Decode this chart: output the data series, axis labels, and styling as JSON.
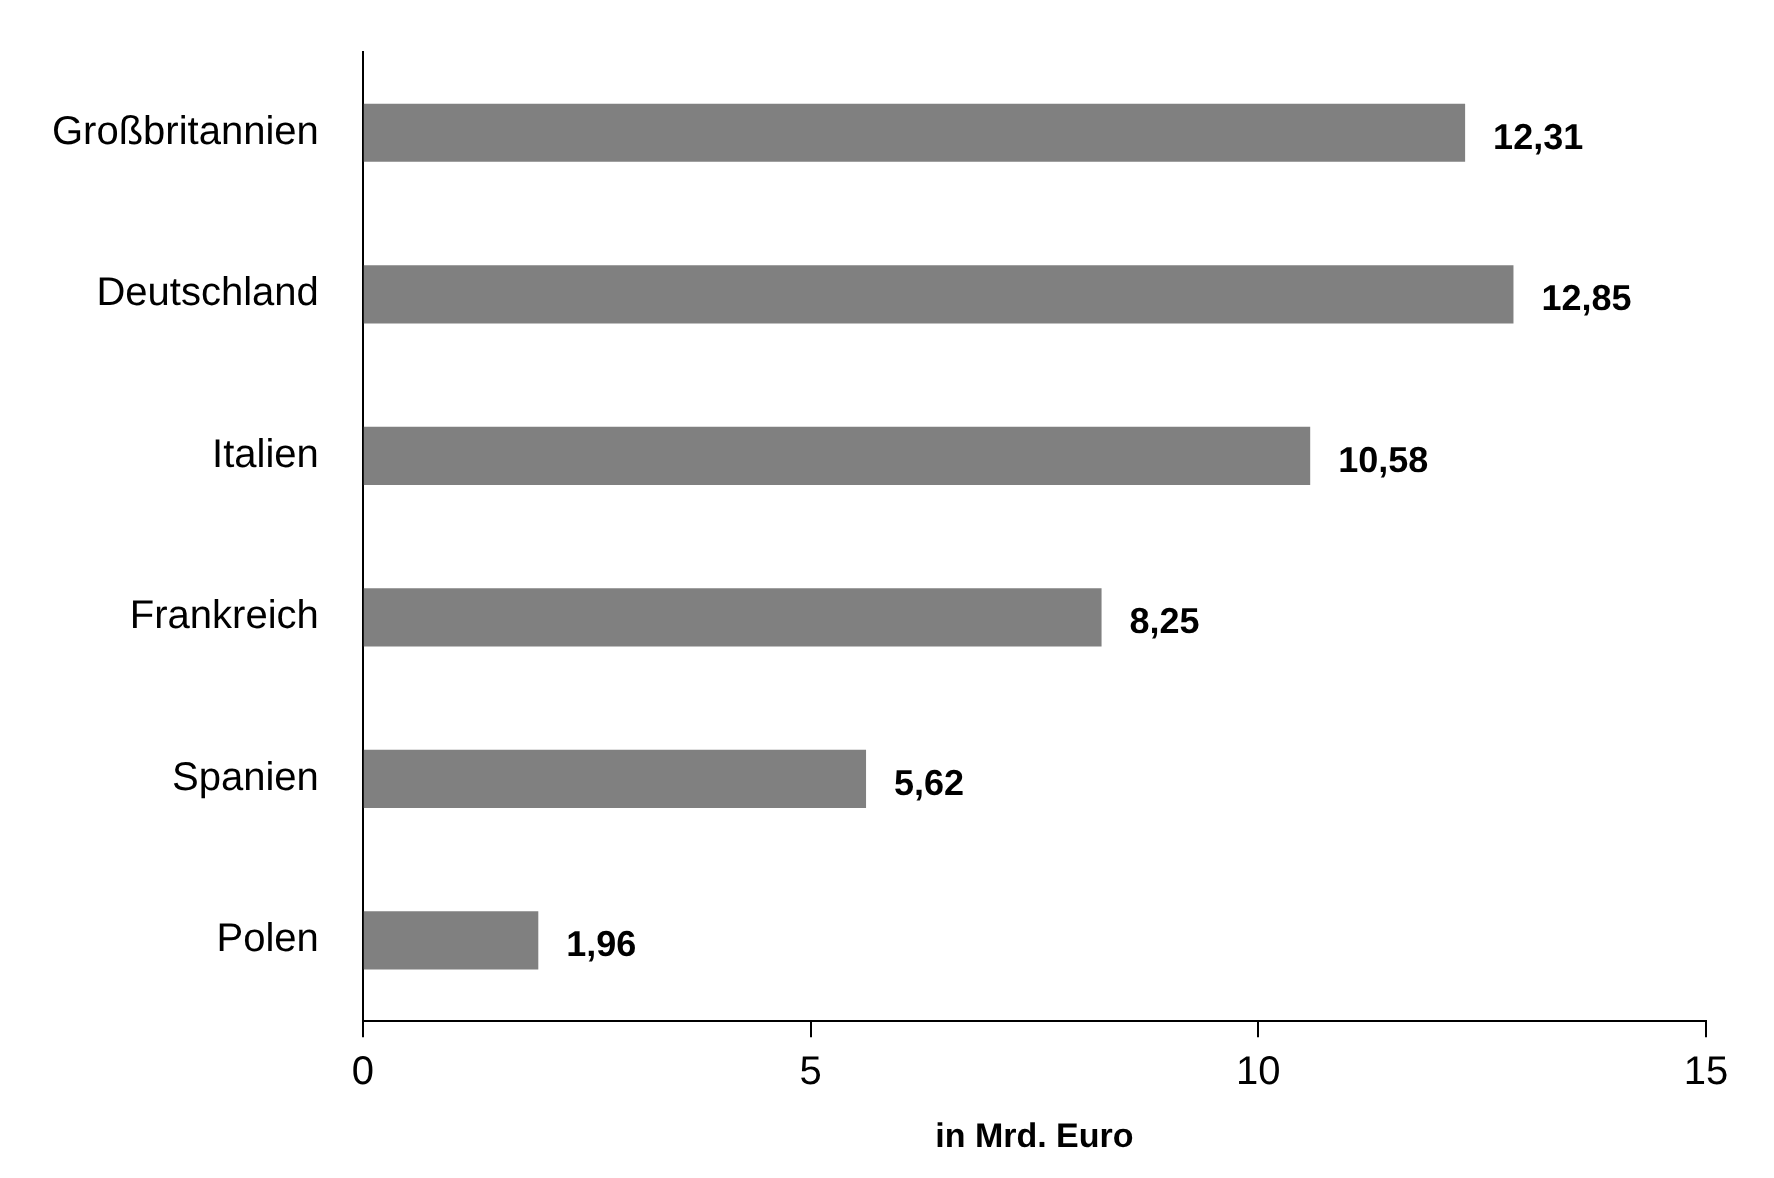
{
  "chart_data": {
    "type": "bar",
    "orientation": "horizontal",
    "xlabel": "in Mrd. Euro",
    "categories": [
      "Großbritannien",
      "Deutschland",
      "Italien",
      "Frankreich",
      "Spanien",
      "Polen"
    ],
    "values": [
      12.31,
      12.85,
      10.58,
      8.25,
      5.62,
      1.96
    ],
    "value_labels": [
      "12,31",
      "12,85",
      "10,58",
      "8,25",
      "5,62",
      "1,96"
    ],
    "color": "#808080",
    "xlim": [
      0,
      15
    ],
    "xticks": [
      0,
      5,
      10,
      15
    ],
    "grid": false,
    "legend": false
  }
}
